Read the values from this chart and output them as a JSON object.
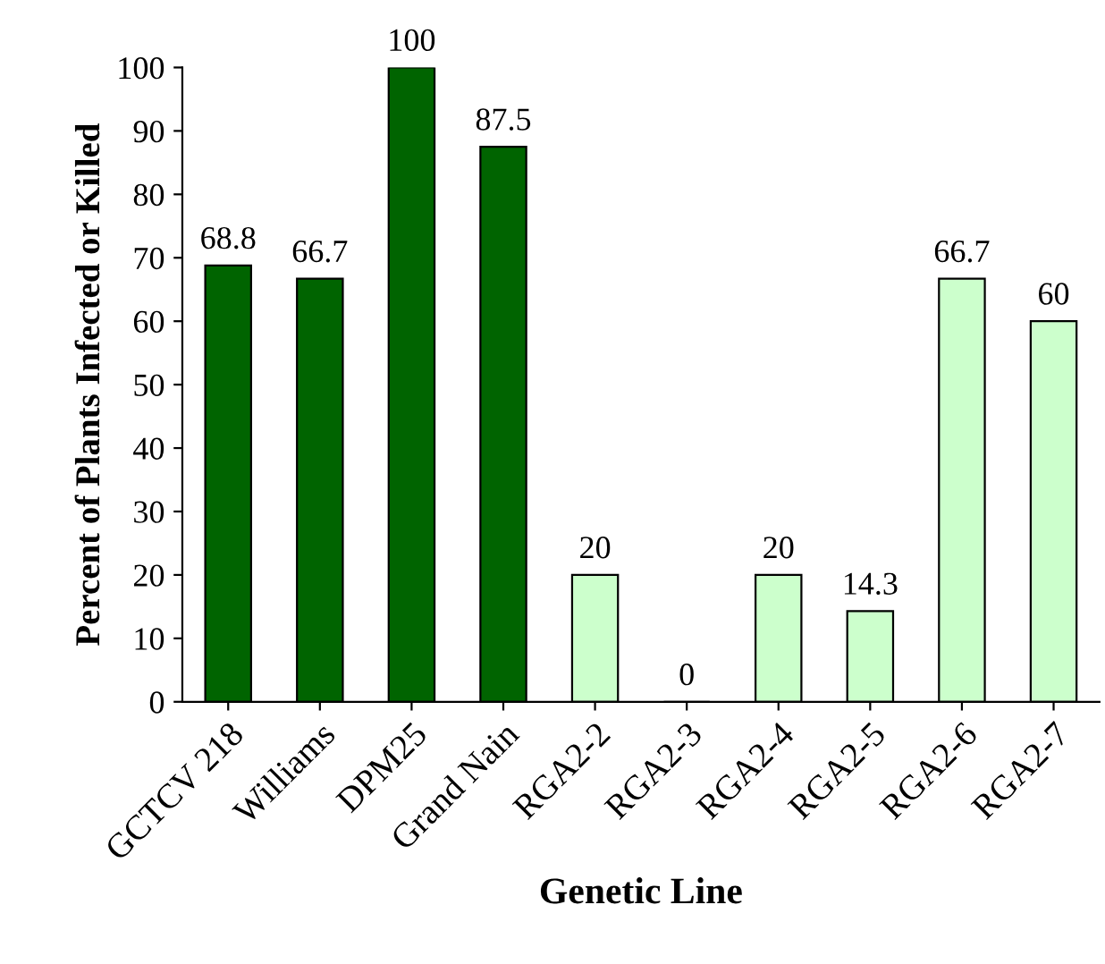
{
  "chart_data": {
    "type": "bar",
    "xlabel": "Genetic Line",
    "ylabel": "Percent of Plants Infected or Killed",
    "categories": [
      "GCTCV 218",
      "Williams",
      "DPM25",
      "Grand Nain",
      "RGA2-2",
      "RGA2-3",
      "RGA2-4",
      "RGA2-5",
      "RGA2-6",
      "RGA2-7"
    ],
    "values": [
      68.8,
      66.7,
      100,
      87.5,
      20,
      0,
      20,
      14.3,
      66.7,
      60
    ],
    "colors": [
      "#006400",
      "#006400",
      "#006400",
      "#006400",
      "#ccffcc",
      "#ccffcc",
      "#ccffcc",
      "#ccffcc",
      "#ccffcc",
      "#ccffcc"
    ],
    "ylim": [
      0,
      100
    ],
    "yticks": [
      0,
      10,
      20,
      30,
      40,
      50,
      60,
      70,
      80,
      90,
      100
    ],
    "data_labels": true,
    "grid": false,
    "legend": false
  }
}
